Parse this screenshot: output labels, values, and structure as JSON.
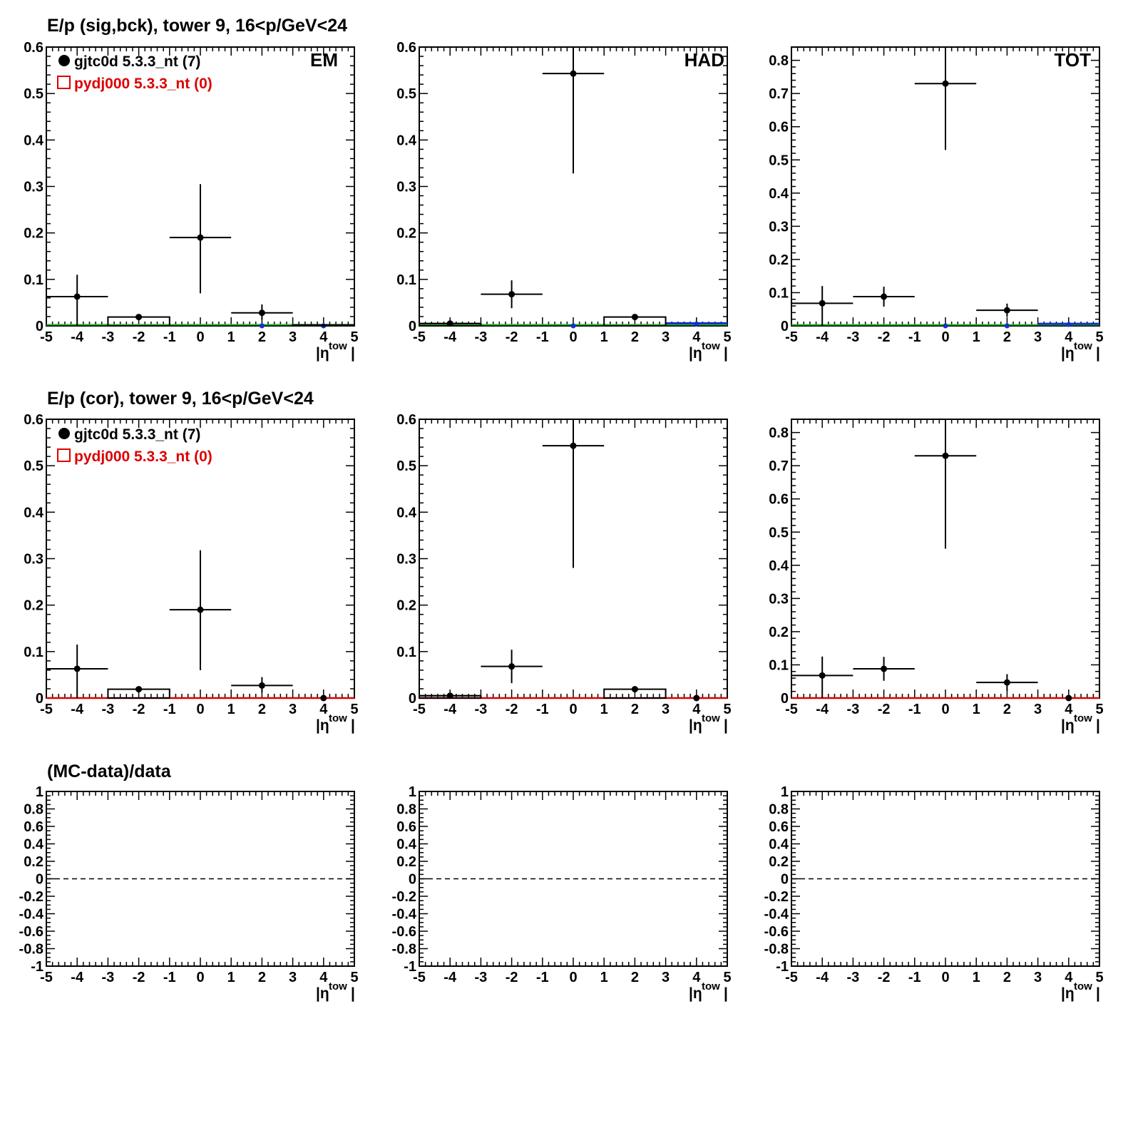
{
  "figure": {
    "row_titles": [
      "E/p (sig,bck), tower 9, 16<p/GeV<24",
      "E/p (cor), tower 9, 16<p/GeV<24",
      "(MC-data)/data"
    ],
    "panel_labels": [
      "EM",
      "HAD",
      "TOT"
    ],
    "legend": [
      {
        "text": "gjtc0d 5.3.3_nt (7)",
        "marker": "filled-circle",
        "color": "#000000"
      },
      {
        "text": "pydj000 5.3.3_nt (0)",
        "marker": "open-square",
        "color": "#dd0000"
      }
    ],
    "x_axis": {
      "range": [
        -5,
        5
      ],
      "tick_labels": [
        "-5",
        "-4",
        "-3",
        "-2",
        "-1",
        "0",
        "1",
        "2",
        "3",
        "4",
        "5"
      ],
      "label_base": "|η",
      "label_sup": "tow",
      "label_end": "|"
    },
    "colors": {
      "data": "#000000",
      "mc": "#dd0000",
      "signal": "#22bb22",
      "background": "#1133cc"
    }
  },
  "chart_data": [
    {
      "row": 0,
      "col": 0,
      "type": "scatter",
      "ylim": [
        0,
        0.6
      ],
      "yticks": [
        "0",
        "0.1",
        "0.2",
        "0.3",
        "0.4",
        "0.5",
        "0.6"
      ],
      "data_points": [
        {
          "x": -4,
          "y": 0.063,
          "xerr": 1,
          "yerr_lo": 0.063,
          "yerr_hi": 0.047
        },
        {
          "x": -2,
          "y": 0.019,
          "xerr": 0,
          "yerr_lo": 0.005,
          "yerr_hi": 0.005
        },
        {
          "x": 0,
          "y": 0.19,
          "xerr": 1,
          "yerr_lo": 0.12,
          "yerr_hi": 0.115
        },
        {
          "x": 2,
          "y": 0.028,
          "xerr": 1,
          "yerr_lo": 0.015,
          "yerr_hi": 0.018
        }
      ],
      "mc_bins": [
        {
          "x0": -3,
          "x1": -1,
          "y": 0.019
        },
        {
          "x0": 3,
          "x1": 5,
          "y": 0.002
        }
      ],
      "signal_line": 0.001,
      "background_points": [
        {
          "x": 2,
          "y": 0
        },
        {
          "x": 4,
          "y": 0
        }
      ],
      "background_line": null
    },
    {
      "row": 0,
      "col": 1,
      "type": "scatter",
      "ylim": [
        0,
        0.6
      ],
      "yticks": [
        "0",
        "0.1",
        "0.2",
        "0.3",
        "0.4",
        "0.5",
        "0.6"
      ],
      "data_points": [
        {
          "x": -4,
          "y": 0.005,
          "xerr": 1,
          "yerr_lo": 0.004,
          "yerr_hi": 0.004
        },
        {
          "x": -2,
          "y": 0.068,
          "xerr": 1,
          "yerr_lo": 0.03,
          "yerr_hi": 0.03
        },
        {
          "x": 0,
          "y": 0.543,
          "xerr": 1,
          "yerr_lo": 0.215,
          "yerr_hi": 0.06
        },
        {
          "x": 2,
          "y": 0.019,
          "xerr": 0,
          "yerr_lo": 0.005,
          "yerr_hi": 0.006
        }
      ],
      "mc_bins": [
        {
          "x0": -5,
          "x1": -3,
          "y": 0.005
        },
        {
          "x0": 1,
          "x1": 3,
          "y": 0.019
        }
      ],
      "signal_line": 0.001,
      "background_points": [
        {
          "x": 0,
          "y": 0
        },
        {
          "x": 4,
          "y": 0.004
        }
      ],
      "background_line": {
        "x0": 3,
        "x1": 5,
        "y": 0.004
      }
    },
    {
      "row": 0,
      "col": 2,
      "type": "scatter",
      "ylim": [
        0,
        0.84
      ],
      "yticks": [
        "0",
        "0.1",
        "0.2",
        "0.3",
        "0.4",
        "0.5",
        "0.6",
        "0.7",
        "0.8"
      ],
      "data_points": [
        {
          "x": -4,
          "y": 0.068,
          "xerr": 1,
          "yerr_lo": 0.068,
          "yerr_hi": 0.052
        },
        {
          "x": -2,
          "y": 0.088,
          "xerr": 1,
          "yerr_lo": 0.03,
          "yerr_hi": 0.03
        },
        {
          "x": 0,
          "y": 0.73,
          "xerr": 1,
          "yerr_lo": 0.2,
          "yerr_hi": 0.11
        },
        {
          "x": 2,
          "y": 0.047,
          "xerr": 1,
          "yerr_lo": 0.02,
          "yerr_hi": 0.02
        }
      ],
      "mc_bins": [],
      "signal_line": 0.001,
      "background_points": [
        {
          "x": 0,
          "y": 0
        },
        {
          "x": 2,
          "y": 0
        },
        {
          "x": 4,
          "y": 0.004
        }
      ],
      "background_line": {
        "x0": 3,
        "x1": 5,
        "y": 0.004
      }
    },
    {
      "row": 1,
      "col": 0,
      "type": "scatter",
      "ylim": [
        0,
        0.6
      ],
      "yticks": [
        "0",
        "0.1",
        "0.2",
        "0.3",
        "0.4",
        "0.5",
        "0.6"
      ],
      "data_points": [
        {
          "x": -4,
          "y": 0.063,
          "xerr": 1,
          "yerr_lo": 0.063,
          "yerr_hi": 0.052
        },
        {
          "x": -2,
          "y": 0.019,
          "xerr": 0,
          "yerr_lo": 0.005,
          "yerr_hi": 0.005
        },
        {
          "x": 0,
          "y": 0.19,
          "xerr": 1,
          "yerr_lo": 0.13,
          "yerr_hi": 0.128
        },
        {
          "x": 2,
          "y": 0.027,
          "xerr": 1,
          "yerr_lo": 0.015,
          "yerr_hi": 0.018
        },
        {
          "x": 4,
          "y": 0.0,
          "xerr": 0,
          "yerr_lo": 0,
          "yerr_hi": 0
        }
      ],
      "mc_bins": [
        {
          "x0": -3,
          "x1": -1,
          "y": 0.019
        }
      ],
      "mc_line": 0.0
    },
    {
      "row": 1,
      "col": 1,
      "type": "scatter",
      "ylim": [
        0,
        0.6
      ],
      "yticks": [
        "0",
        "0.1",
        "0.2",
        "0.3",
        "0.4",
        "0.5",
        "0.6"
      ],
      "data_points": [
        {
          "x": -4,
          "y": 0.005,
          "xerr": 1,
          "yerr_lo": 0.004,
          "yerr_hi": 0.004
        },
        {
          "x": -2,
          "y": 0.068,
          "xerr": 1,
          "yerr_lo": 0.036,
          "yerr_hi": 0.036
        },
        {
          "x": 0,
          "y": 0.543,
          "xerr": 1,
          "yerr_lo": 0.263,
          "yerr_hi": 0.06
        },
        {
          "x": 2,
          "y": 0.019,
          "xerr": 0,
          "yerr_lo": 0.006,
          "yerr_hi": 0.006
        },
        {
          "x": 4,
          "y": 0.0,
          "xerr": 0,
          "yerr_lo": 0,
          "yerr_hi": 0
        }
      ],
      "mc_bins": [
        {
          "x0": -5,
          "x1": -3,
          "y": 0.005
        },
        {
          "x0": 1,
          "x1": 3,
          "y": 0.019
        }
      ],
      "mc_line": 0.0
    },
    {
      "row": 1,
      "col": 2,
      "type": "scatter",
      "ylim": [
        0,
        0.84
      ],
      "yticks": [
        "0",
        "0.1",
        "0.2",
        "0.3",
        "0.4",
        "0.5",
        "0.6",
        "0.7",
        "0.8"
      ],
      "data_points": [
        {
          "x": -4,
          "y": 0.068,
          "xerr": 1,
          "yerr_lo": 0.068,
          "yerr_hi": 0.057
        },
        {
          "x": -2,
          "y": 0.088,
          "xerr": 1,
          "yerr_lo": 0.036,
          "yerr_hi": 0.036
        },
        {
          "x": 0,
          "y": 0.73,
          "xerr": 1,
          "yerr_lo": 0.28,
          "yerr_hi": 0.11
        },
        {
          "x": 2,
          "y": 0.047,
          "xerr": 1,
          "yerr_lo": 0.025,
          "yerr_hi": 0.025
        },
        {
          "x": 4,
          "y": 0.0,
          "xerr": 0,
          "yerr_lo": 0,
          "yerr_hi": 0
        }
      ],
      "mc_bins": [],
      "mc_line": 0.0
    },
    {
      "row": 2,
      "col": 0,
      "type": "line",
      "ylim": [
        -1,
        1
      ],
      "yticks": [
        "-1",
        "-0.8",
        "-0.6",
        "-0.4",
        "-0.2",
        "0",
        "0.2",
        "0.4",
        "0.6",
        "0.8",
        "1"
      ],
      "reference_line": 0,
      "data_points": []
    },
    {
      "row": 2,
      "col": 1,
      "type": "line",
      "ylim": [
        -1,
        1
      ],
      "yticks": [
        "-1",
        "-0.8",
        "-0.6",
        "-0.4",
        "-0.2",
        "0",
        "0.2",
        "0.4",
        "0.6",
        "0.8",
        "1"
      ],
      "reference_line": 0,
      "data_points": []
    },
    {
      "row": 2,
      "col": 2,
      "type": "line",
      "ylim": [
        -1,
        1
      ],
      "yticks": [
        "-1",
        "-0.8",
        "-0.6",
        "-0.4",
        "-0.2",
        "0",
        "0.2",
        "0.4",
        "0.6",
        "0.8",
        "1"
      ],
      "reference_line": 0,
      "data_points": []
    }
  ]
}
